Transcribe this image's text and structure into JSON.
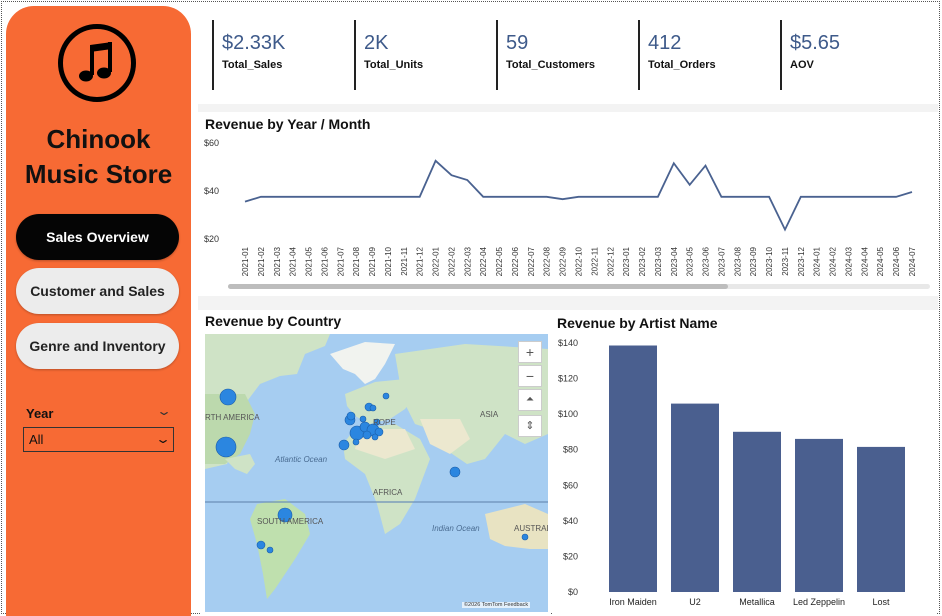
{
  "sidebar": {
    "logo_icon": "music-note-icon",
    "brand_line1": "Chinook",
    "brand_line2": "Music Store",
    "nav": [
      {
        "label": "Sales Overview",
        "active": true
      },
      {
        "label": "Customer and Sales",
        "active": false
      },
      {
        "label": "Genre and Inventory",
        "active": false
      }
    ],
    "year_filter": {
      "label": "Year",
      "value": "All"
    }
  },
  "kpis": [
    {
      "value": "$2.33K",
      "label": "Total_Sales"
    },
    {
      "value": "2K",
      "label": "Total_Units"
    },
    {
      "value": "59",
      "label": "Total_Customers"
    },
    {
      "value": "412",
      "label": "Total_Orders"
    },
    {
      "value": "$5.65",
      "label": "AOV"
    }
  ],
  "colors": {
    "sidebar": "#f76a34",
    "accent": "#3e5a8a",
    "bar": "#4a5f8f",
    "line": "#4a6290",
    "map_bubble": "#2b86e0"
  },
  "map": {
    "title": "Revenue by Country",
    "labels": {
      "north_america": "RTH AMERICA",
      "europe": "ROPE",
      "asia": "ASIA",
      "atlantic": "Atlantic Ocean",
      "africa": "AFRICA",
      "south_america": "SOUTH AMERICA",
      "indian": "Indian Ocean",
      "australia": "AUSTRAL"
    },
    "attribution": "©2026 TomTom  Feedback",
    "controls": [
      "+",
      "−",
      "⏶",
      "⇕"
    ]
  },
  "chart_data": [
    {
      "type": "line",
      "title": "Revenue by Year / Month",
      "xlabel": "",
      "ylabel": "",
      "ylim": [
        20,
        60
      ],
      "yticks": [
        "$20",
        "$40",
        "$60"
      ],
      "x": [
        "2021-01",
        "2021-02",
        "2021-03",
        "2021-04",
        "2021-05",
        "2021-06",
        "2021-07",
        "2021-08",
        "2021-09",
        "2021-10",
        "2021-11",
        "2021-12",
        "2022-01",
        "2022-02",
        "2022-03",
        "2022-04",
        "2022-05",
        "2022-06",
        "2022-07",
        "2022-08",
        "2022-09",
        "2022-10",
        "2022-11",
        "2022-12",
        "2023-01",
        "2023-02",
        "2023-03",
        "2023-04",
        "2023-05",
        "2023-06",
        "2023-07",
        "2023-08",
        "2023-09",
        "2023-10",
        "2023-11",
        "2023-12",
        "2024-01",
        "2024-02",
        "2024-03",
        "2024-04",
        "2024-05",
        "2024-06",
        "2024-07"
      ],
      "values": [
        35.6,
        37.6,
        37.6,
        37.6,
        37.6,
        37.6,
        37.6,
        37.6,
        37.6,
        37.6,
        37.6,
        37.6,
        52.6,
        46.6,
        44.6,
        37.6,
        37.6,
        37.6,
        37.6,
        37.6,
        36.6,
        37.6,
        37.6,
        37.6,
        37.6,
        37.6,
        37.6,
        51.6,
        42.6,
        50.6,
        37.6,
        37.6,
        37.6,
        37.6,
        23.9,
        37.6,
        37.6,
        37.6,
        37.6,
        37.6,
        37.6,
        37.6,
        39.6
      ],
      "grid": false
    },
    {
      "type": "bar",
      "title": "Revenue by Artist Name",
      "categories": [
        "Iron Maiden",
        "U2",
        "Metallica",
        "Led Zeppelin",
        "Lost"
      ],
      "values": [
        138.6,
        105.9,
        90.1,
        86.1,
        81.6
      ],
      "ylim": [
        0,
        140
      ],
      "yticks": [
        "$0",
        "$20",
        "$40",
        "$60",
        "$80",
        "$100",
        "$120",
        "$140"
      ],
      "xlabel": "",
      "ylabel": "",
      "grid": false
    }
  ]
}
